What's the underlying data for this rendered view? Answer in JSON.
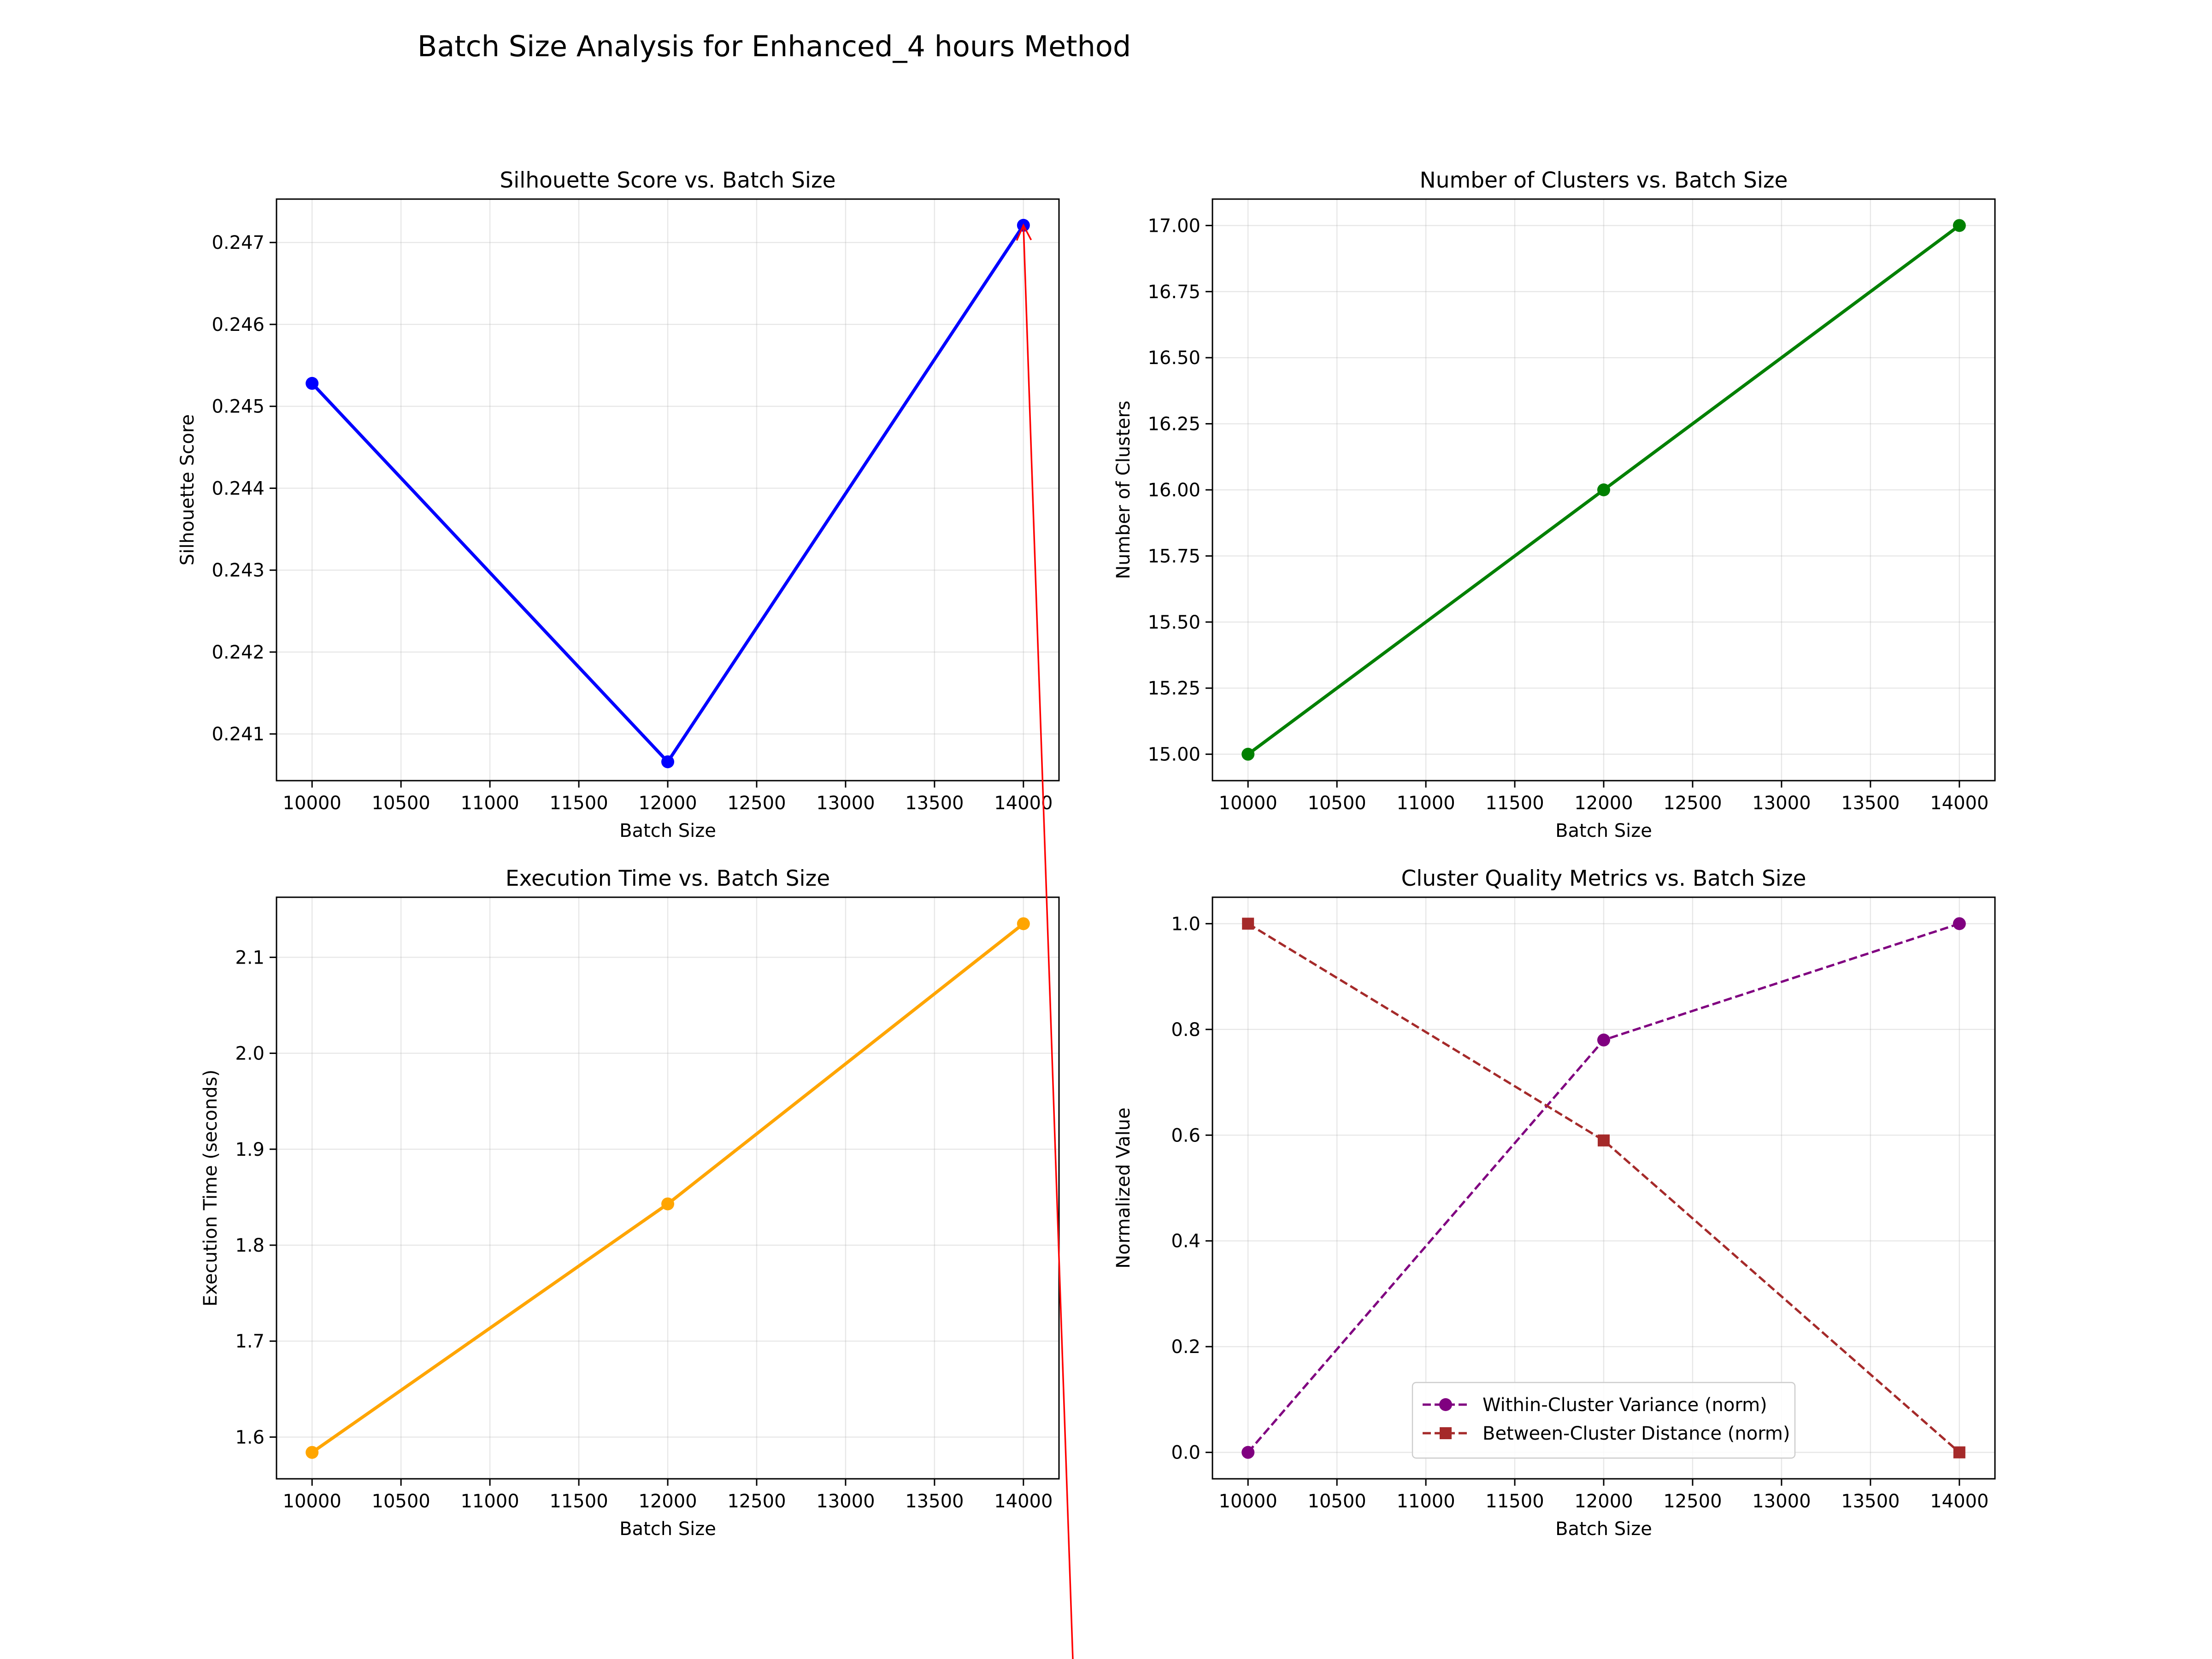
{
  "figure": {
    "suptitle": "Batch Size Analysis for Enhanced_4 hours Method"
  },
  "chart_data": [
    {
      "type": "line",
      "title": "Silhouette Score vs. Batch Size",
      "xlabel": "Batch Size",
      "ylabel": "Silhouette Score",
      "x": [
        10000,
        12000,
        14000
      ],
      "xticks": [
        10000,
        10500,
        11000,
        11500,
        12000,
        12500,
        13000,
        13500,
        14000
      ],
      "xlim": [
        9800,
        14200
      ],
      "yticks": [
        0.241,
        0.242,
        0.243,
        0.244,
        0.245,
        0.246,
        0.247
      ],
      "ytick_labels": [
        "0.241",
        "0.242",
        "0.243",
        "0.244",
        "0.245",
        "0.246",
        "0.247"
      ],
      "ylim": [
        0.24043,
        0.24753
      ],
      "grid": true,
      "series": [
        {
          "values": [
            0.24528,
            0.24066,
            0.24721
          ],
          "color": "#0000ff",
          "marker": "circle",
          "linestyle": "solid"
        }
      ],
      "annotation": {
        "type": "arrow",
        "color": "#ff0000",
        "target": [
          14000,
          0.24721
        ]
      }
    },
    {
      "type": "line",
      "title": "Number of Clusters vs. Batch Size",
      "xlabel": "Batch Size",
      "ylabel": "Number of Clusters",
      "x": [
        10000,
        12000,
        14000
      ],
      "xticks": [
        10000,
        10500,
        11000,
        11500,
        12000,
        12500,
        13000,
        13500,
        14000
      ],
      "xlim": [
        9800,
        14200
      ],
      "yticks": [
        15.0,
        15.25,
        15.5,
        15.75,
        16.0,
        16.25,
        16.5,
        16.75,
        17.0
      ],
      "ytick_labels": [
        "15.00",
        "15.25",
        "15.50",
        "15.75",
        "16.00",
        "16.25",
        "16.50",
        "16.75",
        "17.00"
      ],
      "ylim": [
        14.9,
        17.1
      ],
      "grid": true,
      "series": [
        {
          "values": [
            15,
            16,
            17
          ],
          "color": "#008000",
          "marker": "circle",
          "linestyle": "solid"
        }
      ]
    },
    {
      "type": "line",
      "title": "Execution Time vs. Batch Size",
      "xlabel": "Batch Size",
      "ylabel": "Execution Time (seconds)",
      "x": [
        10000,
        12000,
        14000
      ],
      "xticks": [
        10000,
        10500,
        11000,
        11500,
        12000,
        12500,
        13000,
        13500,
        14000
      ],
      "xlim": [
        9800,
        14200
      ],
      "yticks": [
        1.6,
        1.7,
        1.8,
        1.9,
        2.0,
        2.1
      ],
      "ytick_labels": [
        "1.6",
        "1.7",
        "1.8",
        "1.9",
        "2.0",
        "2.1"
      ],
      "ylim": [
        1.5565,
        2.1626
      ],
      "grid": true,
      "series": [
        {
          "values": [
            1.584,
            1.843,
            2.135
          ],
          "color": "#ffa500",
          "marker": "circle",
          "linestyle": "solid"
        }
      ]
    },
    {
      "type": "line",
      "title": "Cluster Quality Metrics vs. Batch Size",
      "xlabel": "Batch Size",
      "ylabel": "Normalized Value",
      "x": [
        10000,
        12000,
        14000
      ],
      "xticks": [
        10000,
        10500,
        11000,
        11500,
        12000,
        12500,
        13000,
        13500,
        14000
      ],
      "xlim": [
        9800,
        14200
      ],
      "yticks": [
        0.0,
        0.2,
        0.4,
        0.6,
        0.8,
        1.0
      ],
      "ytick_labels": [
        "0.0",
        "0.2",
        "0.4",
        "0.6",
        "0.8",
        "1.0"
      ],
      "ylim": [
        -0.05,
        1.05
      ],
      "grid": true,
      "legend": "lower center",
      "series": [
        {
          "name": "Within-Cluster Variance (norm)",
          "values": [
            0.0,
            0.78,
            1.0
          ],
          "color": "#800080",
          "marker": "circle",
          "linestyle": "dashed"
        },
        {
          "name": "Between-Cluster Distance (norm)",
          "values": [
            1.0,
            0.59,
            0.0
          ],
          "color": "#a52a2a",
          "marker": "square",
          "linestyle": "dashed"
        }
      ]
    }
  ]
}
